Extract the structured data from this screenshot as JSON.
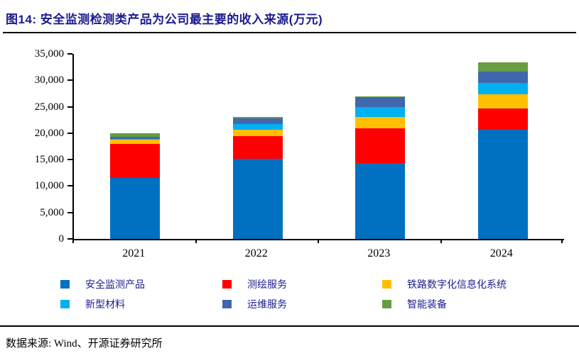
{
  "header": {
    "title": "图14: 安全监测检测类产品为公司最主要的收入来源(万元)"
  },
  "footer": {
    "source": "数据来源: Wind、开源证券研究所"
  },
  "colors": {
    "title_text": "#1b1b8f",
    "legend_text": "#1b1b8f",
    "axis": "#000000"
  },
  "chart_data": {
    "type": "bar",
    "stacked": true,
    "title": "图14: 安全监测检测类产品为公司最主要的收入来源(万元)",
    "xlabel": "",
    "ylabel": "",
    "categories": [
      "2021",
      "2022",
      "2023",
      "2024"
    ],
    "series": [
      {
        "name": "安全监测产品",
        "color": "#0070C0",
        "values": [
          11500,
          15100,
          14300,
          20700
        ]
      },
      {
        "name": "测绘服务",
        "color": "#FF0000",
        "values": [
          6450,
          4400,
          6600,
          4000
        ]
      },
      {
        "name": "铁路数字化信息化系统",
        "color": "#FFC000",
        "values": [
          800,
          1100,
          2150,
          2600
        ]
      },
      {
        "name": "新型材料",
        "color": "#00B0F0",
        "values": [
          150,
          1100,
          1900,
          2150
        ]
      },
      {
        "name": "运维服务",
        "color": "#4167AE",
        "values": [
          400,
          1100,
          1850,
          2250
        ]
      },
      {
        "name": "智能装备",
        "color": "#669D41",
        "values": [
          700,
          250,
          200,
          1650
        ]
      }
    ],
    "totals": [
      20000,
      23050,
      27000,
      33350
    ],
    "ylim": [
      0,
      35000
    ],
    "yticks": [
      0,
      5000,
      10000,
      15000,
      20000,
      25000,
      30000,
      35000
    ],
    "grid": false,
    "legend_position": "bottom"
  }
}
